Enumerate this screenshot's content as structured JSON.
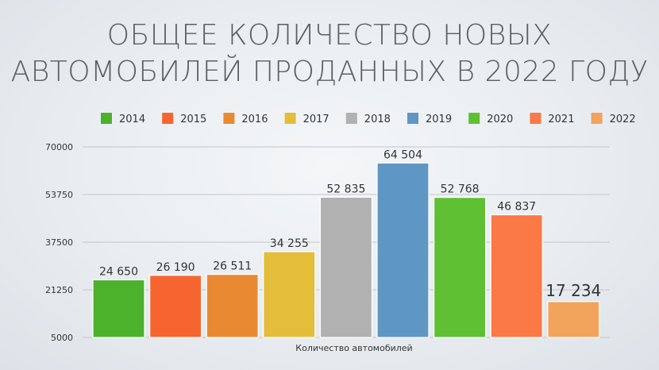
{
  "title": {
    "line1": "ОБЩЕЕ КОЛИЧЕСТВО НОВЫХ",
    "line2": "АВТОМОБИЛЕЙ ПРОДАННЫХ В 2022 ГОДУ"
  },
  "chart_data": {
    "type": "bar",
    "title": "ОБЩЕЕ КОЛИЧЕСТВО НОВЫХ АВТОМОБИЛЕЙ ПРОДАННЫХ В 2022 ГОДУ",
    "xlabel": "Количество автомобилей",
    "ylabel": "",
    "ylim": [
      5000,
      70000
    ],
    "yticks": [
      "70000",
      "53750",
      "37500",
      "21250",
      "5000"
    ],
    "grid": true,
    "legend_position": "top",
    "series": [
      {
        "name": "2014",
        "values": [
          24650
        ],
        "color": "#4cb12b",
        "label": "24 650"
      },
      {
        "name": "2015",
        "values": [
          26190
        ],
        "color": "#f6652f",
        "label": "26 190"
      },
      {
        "name": "2016",
        "values": [
          26511
        ],
        "color": "#e98a33",
        "label": "26 511"
      },
      {
        "name": "2017",
        "values": [
          34255
        ],
        "color": "#e4bd3a",
        "label": "34 255"
      },
      {
        "name": "2018",
        "values": [
          52835
        ],
        "color": "#b1b1b1",
        "label": "52 835"
      },
      {
        "name": "2019",
        "values": [
          64504
        ],
        "color": "#5f97c4",
        "label": "64 504"
      },
      {
        "name": "2020",
        "values": [
          52768
        ],
        "color": "#5ec032",
        "label": "52 768"
      },
      {
        "name": "2021",
        "values": [
          46837
        ],
        "color": "#fb7944",
        "label": "46 837"
      },
      {
        "name": "2022",
        "values": [
          17234
        ],
        "color": "#f2a35c",
        "label": "17 234"
      }
    ]
  }
}
